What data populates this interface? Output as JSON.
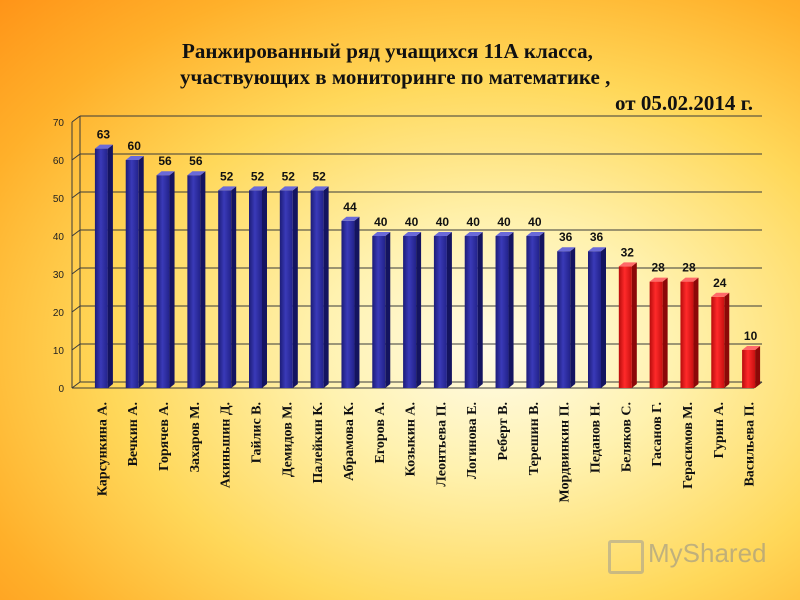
{
  "title": {
    "line1": "Ранжированный ряд  учащихся 11А класса,",
    "line2": "участвующих в мониторинге по математике ,",
    "line3": "от  05.02.2014 г."
  },
  "watermark": {
    "text": "MyShared"
  },
  "colors": {
    "blue": "#2e2e9c",
    "red": "#ee1a1a",
    "grid": "#3a3a3a"
  },
  "chart_data": {
    "type": "bar",
    "title": "Ранжированный ряд  учащихся 11А класса, участвующих в мониторинге по математике , от  05.02.2014 г.",
    "xlabel": "",
    "ylabel": "",
    "ylim": [
      0,
      70
    ],
    "yticks": [
      0,
      10,
      20,
      30,
      40,
      50,
      60,
      70
    ],
    "grid": true,
    "legend": "none",
    "categories": [
      "Карсункина А.",
      "Вечкин А.",
      "Горячев А.",
      "Захаров М.",
      "Акиньшин Д.",
      "Гайлис В.",
      "Демидов М.",
      "Палейкин К.",
      "Абрамова К.",
      "Егоров А.",
      "Козыкин А.",
      "Леонтьева П.",
      "Логинова Е.",
      "Реберт В.",
      "Терешин В.",
      "Мордвинкин П.",
      "Педанов Н.",
      "Беляков С.",
      "Гасанов Г.",
      "Герасимов М.",
      "Гурин А.",
      "Васильева П."
    ],
    "values": [
      63,
      60,
      56,
      56,
      52,
      52,
      52,
      52,
      44,
      40,
      40,
      40,
      40,
      40,
      40,
      36,
      36,
      32,
      28,
      28,
      24,
      10
    ],
    "bar_colors": [
      "blue",
      "blue",
      "blue",
      "blue",
      "blue",
      "blue",
      "blue",
      "blue",
      "blue",
      "blue",
      "blue",
      "blue",
      "blue",
      "blue",
      "blue",
      "blue",
      "blue",
      "red",
      "red",
      "red",
      "red",
      "red"
    ]
  }
}
